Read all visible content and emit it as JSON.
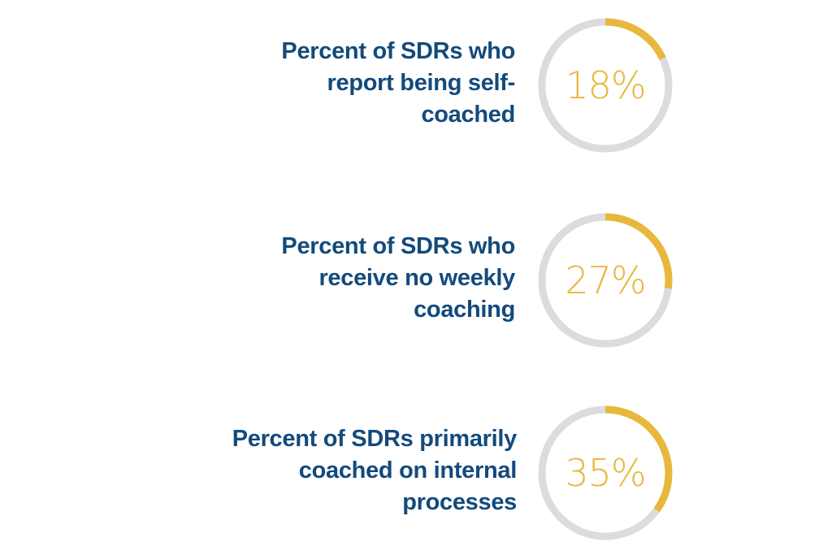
{
  "colors": {
    "label": "#134a7c",
    "accent": "#e8b73c",
    "track": "#dcdcdc"
  },
  "chart_data": [
    {
      "type": "pie",
      "label_lines": [
        "Percent of SDRs who",
        "report being self-",
        "coached"
      ],
      "value": 18,
      "display": "18%"
    },
    {
      "type": "pie",
      "label_lines": [
        "Percent of SDRs who",
        "receive no weekly",
        "coaching"
      ],
      "value": 27,
      "display": "27%"
    },
    {
      "type": "pie",
      "label_lines": [
        "Percent of SDRs primarily",
        "coached on internal",
        "processes"
      ],
      "value": 35,
      "display": "35%"
    }
  ]
}
